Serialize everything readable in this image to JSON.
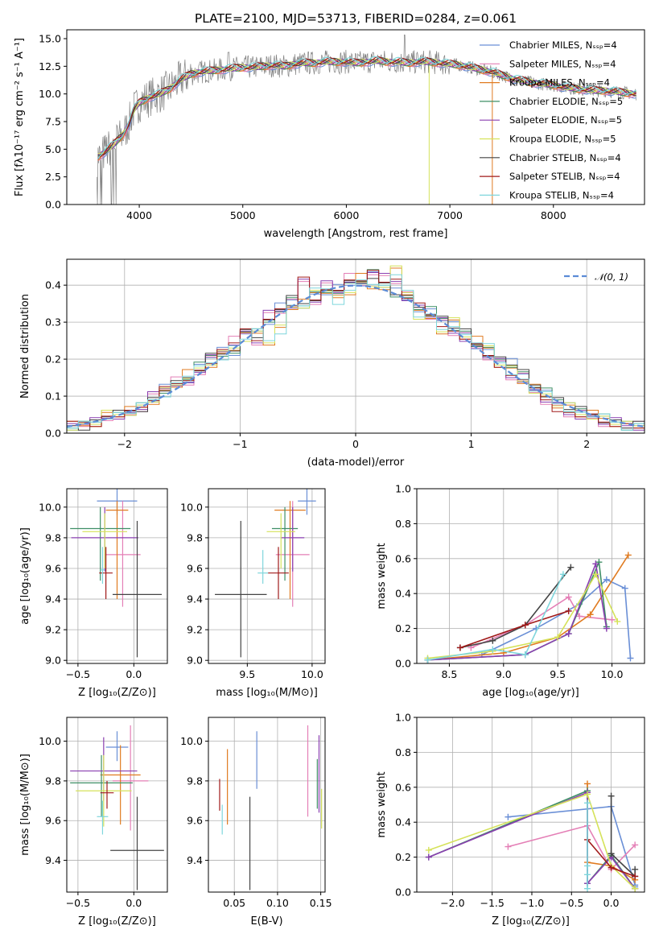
{
  "chart_data": [
    {
      "type": "line",
      "title": "PLATE=2100, MJD=53713, FIBERID=0284, z=0.061",
      "xlabel": "wavelength [Angstrom, rest frame]",
      "ylabel": "Flux [fλ10⁻¹⁷ erg cm⁻² s⁻¹ A⁻¹]",
      "xlim": [
        3300,
        8880
      ],
      "ylim": [
        0,
        15.8
      ],
      "xticks": [
        "4000",
        "5000",
        "6000",
        "7000",
        "8000"
      ],
      "yticks": [
        "0.0",
        "2.5",
        "5.0",
        "7.5",
        "10.0",
        "12.5",
        "15.0"
      ],
      "legend_position": "top-right",
      "observed_color": "#808080",
      "data_x": [
        3600,
        3650,
        3700,
        3750,
        3800,
        3850,
        3900,
        3950,
        4000,
        4100,
        4200,
        4300,
        4400,
        4500,
        4600,
        4700,
        4800,
        4900,
        5000,
        5100,
        5200,
        5300,
        5400,
        5500,
        5600,
        5700,
        5800,
        5900,
        6000,
        6100,
        6200,
        6300,
        6400,
        6500,
        6600,
        6700,
        6800,
        6900,
        7000,
        7100,
        7200,
        7300,
        7400,
        7500,
        7600,
        7700,
        7800,
        7900,
        8000,
        8100,
        8200,
        8300,
        8400,
        8500,
        8600,
        8700,
        8800
      ],
      "data_y": [
        4.3,
        4.6,
        5.0,
        5.4,
        5.9,
        6.4,
        7.3,
        8.6,
        9.2,
        9.7,
        10.0,
        10.5,
        11.3,
        11.8,
        12.0,
        12.1,
        12.2,
        12.3,
        12.4,
        12.4,
        12.5,
        12.6,
        12.5,
        12.7,
        12.8,
        12.8,
        12.9,
        12.9,
        12.9,
        12.8,
        12.9,
        13.0,
        12.9,
        12.9,
        12.8,
        12.9,
        12.9,
        12.8,
        12.7,
        12.6,
        12.4,
        12.2,
        12.0,
        11.7,
        11.4,
        11.2,
        11.0,
        10.9,
        10.8,
        10.6,
        10.5,
        10.4,
        10.3,
        10.3,
        10.2,
        10.1,
        10.0
      ],
      "series": [
        {
          "name": "Chabrier MILES, Nₛₛₚ=4",
          "color": "#6a8fd6"
        },
        {
          "name": "Salpeter MILES, Nₛₛₚ=4",
          "color": "#e47fb6"
        },
        {
          "name": "Kroupa MILES, Nₛₛₚ=4",
          "color": "#e07b20"
        },
        {
          "name": "Chabrier ELODIE, Nₛₛₚ=5",
          "color": "#3f8f66"
        },
        {
          "name": "Salpeter ELODIE, Nₛₛₚ=5",
          "color": "#8a3fb0"
        },
        {
          "name": "Kroupa ELODIE, Nₛₛₚ=5",
          "color": "#d5e25a"
        },
        {
          "name": "Chabrier STELIB, Nₛₛₚ=4",
          "color": "#444444"
        },
        {
          "name": "Salpeter STELIB, Nₛₛₚ=4",
          "color": "#a11a1a"
        },
        {
          "name": "Kroupa STELIB, Nₛₛₚ=4",
          "color": "#7fd6dc"
        }
      ]
    },
    {
      "type": "histogram",
      "xlabel": "(data-model)/error",
      "ylabel": "Normed distribution",
      "xlim": [
        -2.5,
        2.5
      ],
      "ylim": [
        0,
        0.47
      ],
      "xticks": [
        "−2",
        "−1",
        "0",
        "1",
        "2"
      ],
      "yticks": [
        "0.0",
        "0.1",
        "0.2",
        "0.3",
        "0.4"
      ],
      "legend": "𝒩(0, 1)",
      "legend_position": "top-right",
      "curve_color": "#5b8bd6",
      "bins": [
        -2.5,
        -2.4,
        -2.3,
        -2.2,
        -2.1,
        -2.0,
        -1.9,
        -1.8,
        -1.7,
        -1.6,
        -1.5,
        -1.4,
        -1.3,
        -1.2,
        -1.1,
        -1.0,
        -0.9,
        -0.8,
        -0.7,
        -0.6,
        -0.5,
        -0.4,
        -0.3,
        -0.2,
        -0.1,
        0.0,
        0.1,
        0.2,
        0.3,
        0.4,
        0.5,
        0.6,
        0.7,
        0.8,
        0.9,
        1.0,
        1.1,
        1.2,
        1.3,
        1.4,
        1.5,
        1.6,
        1.7,
        1.8,
        1.9,
        2.0,
        2.1,
        2.2,
        2.3,
        2.4,
        2.5
      ],
      "series_values": [
        [
          0.02,
          0.02,
          0.03,
          0.05,
          0.05,
          0.06,
          0.07,
          0.09,
          0.12,
          0.13,
          0.15,
          0.18,
          0.21,
          0.22,
          0.21,
          0.28,
          0.27,
          0.3,
          0.34,
          0.36,
          0.35,
          0.37,
          0.38,
          0.39,
          0.4,
          0.41,
          0.43,
          0.4,
          0.38,
          0.36,
          0.34,
          0.33,
          0.31,
          0.29,
          0.27,
          0.24,
          0.22,
          0.2,
          0.19,
          0.16,
          0.13,
          0.11,
          0.09,
          0.07,
          0.06,
          0.05,
          0.04,
          0.03,
          0.02,
          0.02
        ],
        [
          0.02,
          0.03,
          0.03,
          0.04,
          0.05,
          0.05,
          0.07,
          0.1,
          0.12,
          0.14,
          0.13,
          0.17,
          0.2,
          0.22,
          0.25,
          0.27,
          0.25,
          0.32,
          0.33,
          0.35,
          0.41,
          0.36,
          0.4,
          0.38,
          0.42,
          0.4,
          0.44,
          0.42,
          0.41,
          0.37,
          0.34,
          0.32,
          0.3,
          0.27,
          0.26,
          0.23,
          0.21,
          0.19,
          0.15,
          0.15,
          0.11,
          0.09,
          0.07,
          0.05,
          0.05,
          0.04,
          0.03,
          0.03,
          0.02,
          0.02
        ],
        [
          0.02,
          0.02,
          0.03,
          0.05,
          0.05,
          0.06,
          0.07,
          0.09,
          0.11,
          0.13,
          0.16,
          0.17,
          0.19,
          0.21,
          0.23,
          0.26,
          0.27,
          0.25,
          0.28,
          0.34,
          0.35,
          0.38,
          0.39,
          0.36,
          0.38,
          0.42,
          0.39,
          0.4,
          0.44,
          0.38,
          0.32,
          0.31,
          0.28,
          0.3,
          0.26,
          0.25,
          0.23,
          0.19,
          0.17,
          0.14,
          0.12,
          0.1,
          0.08,
          0.07,
          0.05,
          0.05,
          0.04,
          0.03,
          0.02,
          0.02
        ]
      ],
      "series_colors": [
        "#6a8fd6",
        "#e47fb6",
        "#e07b20",
        "#3f8f66",
        "#8a3fb0",
        "#d5e25a",
        "#444444",
        "#a11a1a",
        "#7fd6dc"
      ]
    },
    {
      "type": "scatter",
      "xlabel": "Z [log₁₀(Z/Z⊙)]",
      "ylabel": "age  [log₁₀(age/yr)]",
      "xlim": [
        -0.6,
        0.3
      ],
      "ylim": [
        8.98,
        10.12
      ],
      "xticks": [
        "−0.5",
        "0.0"
      ],
      "yticks": [
        "9.0",
        "9.2",
        "9.4",
        "9.6",
        "9.8",
        "10.0"
      ],
      "points": [
        {
          "x": -0.15,
          "y": 10.04,
          "xerr": 0.18,
          "ylo": 9.95,
          "yhi": 10.12,
          "color": "#6a8fd6"
        },
        {
          "x": -0.1,
          "y": 9.69,
          "xerr": 0.16,
          "ylo": 9.35,
          "yhi": 10.04,
          "color": "#e47fb6"
        },
        {
          "x": -0.15,
          "y": 9.98,
          "xerr": 0.1,
          "ylo": 9.4,
          "yhi": 10.04,
          "color": "#e07b20"
        },
        {
          "x": -0.3,
          "y": 9.86,
          "xerr": 0.27,
          "ylo": 9.52,
          "yhi": 10.0,
          "color": "#3f8f66"
        },
        {
          "x": -0.26,
          "y": 9.8,
          "xerr": 0.3,
          "ylo": 9.58,
          "yhi": 10.0,
          "color": "#8a3fb0"
        },
        {
          "x": -0.26,
          "y": 9.84,
          "xerr": 0.2,
          "ylo": 9.6,
          "yhi": 9.96,
          "color": "#d5e25a"
        },
        {
          "x": 0.03,
          "y": 9.43,
          "xerr": 0.22,
          "ylo": 9.02,
          "yhi": 9.91,
          "color": "#444444"
        },
        {
          "x": -0.25,
          "y": 9.57,
          "xerr": 0.06,
          "ylo": 9.4,
          "yhi": 9.74,
          "color": "#a11a1a"
        },
        {
          "x": -0.28,
          "y": 9.59,
          "xerr": 0.02,
          "ylo": 9.5,
          "yhi": 9.74,
          "color": "#7fd6dc"
        }
      ]
    },
    {
      "type": "scatter",
      "xlabel": "mass [log₁₀(M/M⊙)]",
      "ylabel": "",
      "xlim": [
        9.2,
        10.1
      ],
      "ylim": [
        8.98,
        10.12
      ],
      "xticks": [
        "9.5",
        "10.0"
      ],
      "yticks": [
        "9.0",
        "9.2",
        "9.4",
        "9.6",
        "9.8",
        "10.0"
      ],
      "points": [
        {
          "x": 9.96,
          "y": 10.04,
          "xerr": 0.07,
          "ylo": 9.95,
          "yhi": 10.12,
          "color": "#6a8fd6"
        },
        {
          "x": 9.85,
          "y": 9.69,
          "xerr": 0.13,
          "ylo": 9.35,
          "yhi": 10.04,
          "color": "#e47fb6"
        },
        {
          "x": 9.83,
          "y": 9.98,
          "xerr": 0.12,
          "ylo": 9.4,
          "yhi": 10.04,
          "color": "#e07b20"
        },
        {
          "x": 9.79,
          "y": 9.86,
          "xerr": 0.1,
          "ylo": 9.52,
          "yhi": 10.0,
          "color": "#3f8f66"
        },
        {
          "x": 9.85,
          "y": 9.8,
          "xerr": 0.09,
          "ylo": 9.58,
          "yhi": 10.0,
          "color": "#8a3fb0"
        },
        {
          "x": 9.76,
          "y": 9.84,
          "xerr": 0.11,
          "ylo": 9.6,
          "yhi": 9.96,
          "color": "#d5e25a"
        },
        {
          "x": 9.45,
          "y": 9.43,
          "xerr": 0.2,
          "ylo": 9.02,
          "yhi": 9.91,
          "color": "#444444"
        },
        {
          "x": 9.74,
          "y": 9.57,
          "xerr": 0.08,
          "ylo": 9.4,
          "yhi": 9.74,
          "color": "#a11a1a"
        },
        {
          "x": 9.62,
          "y": 9.57,
          "xerr": 0.04,
          "ylo": 9.5,
          "yhi": 9.72,
          "color": "#7fd6dc"
        }
      ]
    },
    {
      "type": "line",
      "xlabel": "age  [log₁₀(age/yr)]",
      "ylabel": "mass weight",
      "xlim": [
        8.2,
        10.3
      ],
      "ylim": [
        0,
        1
      ],
      "xticks": [
        "8.5",
        "9.0",
        "9.5",
        "10.0"
      ],
      "yticks": [
        "0.0",
        "0.2",
        "0.4",
        "0.6",
        "0.8",
        "1.0"
      ],
      "series": [
        {
          "color": "#6a8fd6",
          "x": [
            8.8,
            9.3,
            9.7,
            9.95,
            10.12,
            10.17
          ],
          "y": [
            0.05,
            0.2,
            0.34,
            0.48,
            0.43,
            0.03
          ]
        },
        {
          "color": "#e47fb6",
          "x": [
            8.7,
            9.2,
            9.6,
            9.7,
            10.0
          ],
          "y": [
            0.09,
            0.22,
            0.38,
            0.27,
            0.25
          ]
        },
        {
          "color": "#e07b20",
          "x": [
            8.3,
            9.0,
            9.5,
            9.8,
            10.15
          ],
          "y": [
            0.02,
            0.06,
            0.15,
            0.28,
            0.62
          ]
        },
        {
          "color": "#3f8f66",
          "x": [
            8.3,
            9.2,
            9.6,
            9.88,
            9.95
          ],
          "y": [
            0.02,
            0.05,
            0.17,
            0.58,
            0.21
          ]
        },
        {
          "color": "#8a3fb0",
          "x": [
            8.3,
            9.2,
            9.6,
            9.85,
            9.95
          ],
          "y": [
            0.02,
            0.05,
            0.17,
            0.57,
            0.2
          ]
        },
        {
          "color": "#d5e25a",
          "x": [
            8.3,
            8.9,
            9.5,
            9.85,
            10.05
          ],
          "y": [
            0.03,
            0.07,
            0.15,
            0.51,
            0.24
          ]
        },
        {
          "color": "#444444",
          "x": [
            8.6,
            8.9,
            9.2,
            9.62
          ],
          "y": [
            0.09,
            0.13,
            0.22,
            0.55
          ]
        },
        {
          "color": "#a11a1a",
          "x": [
            8.6,
            9.2,
            9.6
          ],
          "y": [
            0.09,
            0.22,
            0.3
          ]
        },
        {
          "color": "#7fd6dc",
          "x": [
            8.3,
            8.9,
            9.2,
            9.55
          ],
          "y": [
            0.02,
            0.08,
            0.05,
            0.51
          ]
        }
      ]
    },
    {
      "type": "scatter",
      "xlabel": "Z [log₁₀(Z/Z⊙)]",
      "ylabel": "mass [log₁₀(M/M⊙)]",
      "xlim": [
        -0.6,
        0.3
      ],
      "ylim": [
        9.24,
        10.12
      ],
      "xticks": [
        "−0.5",
        "0.0"
      ],
      "yticks": [
        "9.4",
        "9.6",
        "9.8",
        "10.0"
      ],
      "points": [
        {
          "x": -0.15,
          "y": 9.97,
          "xerr": 0.1,
          "ylo": 9.9,
          "yhi": 10.05,
          "color": "#6a8fd6"
        },
        {
          "x": -0.03,
          "y": 9.8,
          "xerr": 0.16,
          "ylo": 9.55,
          "yhi": 10.08,
          "color": "#e47fb6"
        },
        {
          "x": -0.12,
          "y": 9.83,
          "xerr": 0.18,
          "ylo": 9.58,
          "yhi": 9.98,
          "color": "#e07b20"
        },
        {
          "x": -0.29,
          "y": 9.79,
          "xerr": 0.28,
          "ylo": 9.62,
          "yhi": 9.93,
          "color": "#3f8f66"
        },
        {
          "x": -0.27,
          "y": 9.85,
          "xerr": 0.3,
          "ylo": 9.7,
          "yhi": 10.02,
          "color": "#8a3fb0"
        },
        {
          "x": -0.27,
          "y": 9.75,
          "xerr": 0.25,
          "ylo": 9.57,
          "yhi": 9.93,
          "color": "#d5e25a"
        },
        {
          "x": 0.03,
          "y": 9.45,
          "xerr": 0.24,
          "ylo": 9.25,
          "yhi": 9.72,
          "color": "#444444"
        },
        {
          "x": -0.24,
          "y": 9.74,
          "xerr": 0.06,
          "ylo": 9.66,
          "yhi": 9.8,
          "color": "#a11a1a"
        },
        {
          "x": -0.28,
          "y": 9.62,
          "xerr": 0.05,
          "ylo": 9.53,
          "yhi": 9.7,
          "color": "#7fd6dc"
        }
      ]
    },
    {
      "type": "errorbar",
      "xlabel": "E(B-V)",
      "ylabel": "",
      "xlim": [
        0.02,
        0.155
      ],
      "ylim": [
        9.24,
        10.12
      ],
      "xticks": [
        "0.05",
        "0.10",
        "0.15"
      ],
      "yticks": [
        "9.4",
        "9.6",
        "9.8",
        "10.0"
      ],
      "points": [
        {
          "x": 0.076,
          "ylo": 9.76,
          "yhi": 10.05,
          "color": "#6a8fd6"
        },
        {
          "x": 0.135,
          "ylo": 9.62,
          "yhi": 10.08,
          "color": "#e47fb6"
        },
        {
          "x": 0.042,
          "ylo": 9.58,
          "yhi": 9.96,
          "color": "#e07b20"
        },
        {
          "x": 0.146,
          "ylo": 9.66,
          "yhi": 9.91,
          "color": "#3f8f66"
        },
        {
          "x": 0.148,
          "ylo": 9.64,
          "yhi": 10.03,
          "color": "#8a3fb0"
        },
        {
          "x": 0.151,
          "ylo": 9.56,
          "yhi": 9.76,
          "color": "#d5e25a"
        },
        {
          "x": 0.068,
          "ylo": 9.25,
          "yhi": 9.72,
          "color": "#444444"
        },
        {
          "x": 0.033,
          "ylo": 9.65,
          "yhi": 9.81,
          "color": "#a11a1a"
        },
        {
          "x": 0.036,
          "ylo": 9.53,
          "yhi": 9.68,
          "color": "#7fd6dc"
        }
      ]
    },
    {
      "type": "line",
      "xlabel": "Z [log₁₀(Z/Z⊙)]",
      "ylabel": "mass weight",
      "xlim": [
        -2.45,
        0.42
      ],
      "ylim": [
        0,
        1
      ],
      "xticks": [
        "−2.0",
        "−1.5",
        "−1.0",
        "−0.5",
        "0.0"
      ],
      "yticks": [
        "0.0",
        "0.2",
        "0.4",
        "0.6",
        "0.8",
        "1.0"
      ],
      "series": [
        {
          "color": "#6a8fd6",
          "x": [
            -1.3,
            0.0,
            0.3,
            0.3
          ],
          "y": [
            0.43,
            0.49,
            0.04,
            0.03
          ]
        },
        {
          "color": "#e47fb6",
          "x": [
            -1.3,
            -0.3,
            0.0,
            0.3
          ],
          "y": [
            0.26,
            0.38,
            0.13,
            0.27
          ]
        },
        {
          "color": "#e07b20",
          "x": [
            -0.3,
            -0.3,
            0.0,
            0.3
          ],
          "y": [
            0.62,
            0.17,
            0.15,
            0.07
          ]
        },
        {
          "color": "#3f8f66",
          "x": [
            -2.3,
            -0.3,
            -0.3,
            0.0,
            0.3
          ],
          "y": [
            0.2,
            0.58,
            0.05,
            0.21,
            0.02
          ]
        },
        {
          "color": "#8a3fb0",
          "x": [
            -2.3,
            -0.3,
            -0.3,
            0.0,
            0.3
          ],
          "y": [
            0.2,
            0.57,
            0.05,
            0.2,
            0.02
          ]
        },
        {
          "color": "#d5e25a",
          "x": [
            -2.3,
            -0.3,
            0.0,
            0.3
          ],
          "y": [
            0.24,
            0.56,
            0.15,
            0.02
          ]
        },
        {
          "color": "#444444",
          "x": [
            0.0,
            0.0,
            0.3,
            0.3
          ],
          "y": [
            0.55,
            0.22,
            0.09,
            0.13
          ]
        },
        {
          "color": "#a11a1a",
          "x": [
            -0.3,
            0.0,
            0.3
          ],
          "y": [
            0.3,
            0.14,
            0.09
          ]
        },
        {
          "color": "#7fd6dc",
          "x": [
            -0.3,
            -0.3,
            -0.3,
            -0.3
          ],
          "y": [
            0.51,
            0.15,
            0.1,
            0.02
          ]
        }
      ]
    }
  ]
}
